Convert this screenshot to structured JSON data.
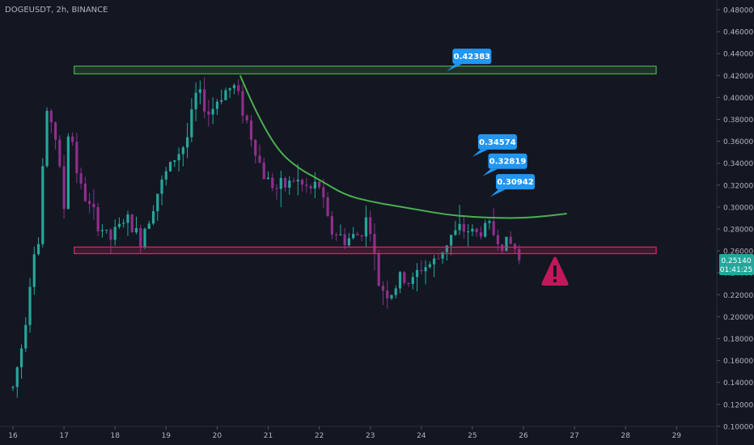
{
  "header": {
    "symbol": "DOGEUSDT, 2h, BINANCE"
  },
  "price_tag": {
    "price": "0.25140",
    "countdown": "01:41:25"
  },
  "colors": {
    "background": "#131722",
    "up": "#26a69a",
    "down": "#8e2f8a",
    "resistance": "#4caf50",
    "support": "#e91e63",
    "callout": "#2196f3",
    "warning": "#c2185b",
    "text": "#b2b5be"
  },
  "icons": {
    "warning": "warning-triangle-icon"
  },
  "chart_data": {
    "type": "candlestick",
    "title": "DOGEUSDT, 2h, BINANCE",
    "xlabel": "",
    "ylabel": "",
    "x_range": [
      16.0,
      29.6
    ],
    "ylim": [
      0.1,
      0.48
    ],
    "x_ticks": [
      16,
      17,
      18,
      19,
      20,
      21,
      22,
      23,
      24,
      25,
      26,
      27,
      28,
      29
    ],
    "x_tick_labels": [
      "16",
      "17",
      "18",
      "19",
      "20",
      "21",
      "22",
      "23",
      "24",
      "25",
      "26",
      "27",
      "28",
      "29"
    ],
    "y_ticks": [
      0.1,
      0.12,
      0.14,
      0.16,
      0.18,
      0.2,
      0.22,
      0.24,
      0.26,
      0.28,
      0.3,
      0.32,
      0.34,
      0.36,
      0.38,
      0.4,
      0.42,
      0.44,
      0.46,
      0.48
    ],
    "y_tick_labels": [
      "0.10000",
      "0.12000",
      "0.14000",
      "0.16000",
      "0.18000",
      "0.20000",
      "0.22000",
      "0.24000",
      "0.26000",
      "0.28000",
      "0.30000",
      "0.32000",
      "0.34000",
      "0.36000",
      "0.38000",
      "0.40000",
      "0.42000",
      "0.44000",
      "0.46000",
      "0.48000"
    ],
    "grid": false,
    "price_anchors": [
      [
        16.0,
        0.135
      ],
      [
        16.2,
        0.18
      ],
      [
        16.4,
        0.26
      ],
      [
        16.55,
        0.27
      ],
      [
        16.6,
        0.37
      ],
      [
        16.7,
        0.39
      ],
      [
        16.85,
        0.36
      ],
      [
        17.0,
        0.3
      ],
      [
        17.1,
        0.38
      ],
      [
        17.3,
        0.32
      ],
      [
        17.6,
        0.29
      ],
      [
        17.9,
        0.27
      ],
      [
        18.2,
        0.29
      ],
      [
        18.5,
        0.27
      ],
      [
        18.8,
        0.31
      ],
      [
        19.1,
        0.34
      ],
      [
        19.4,
        0.36
      ],
      [
        19.6,
        0.405
      ],
      [
        19.85,
        0.385
      ],
      [
        20.1,
        0.405
      ],
      [
        20.35,
        0.41
      ],
      [
        20.5,
        0.39
      ],
      [
        20.7,
        0.36
      ],
      [
        20.9,
        0.33
      ],
      [
        21.2,
        0.315
      ],
      [
        21.5,
        0.325
      ],
      [
        21.8,
        0.315
      ],
      [
        22.0,
        0.32
      ],
      [
        22.2,
        0.28
      ],
      [
        22.5,
        0.27
      ],
      [
        22.8,
        0.275
      ],
      [
        22.9,
        0.29
      ],
      [
        23.0,
        0.28
      ],
      [
        23.15,
        0.23
      ],
      [
        23.4,
        0.22
      ],
      [
        23.6,
        0.235
      ],
      [
        23.8,
        0.23
      ],
      [
        24.0,
        0.245
      ],
      [
        24.3,
        0.25
      ],
      [
        24.45,
        0.265
      ],
      [
        24.6,
        0.275
      ],
      [
        24.9,
        0.28
      ],
      [
        25.1,
        0.275
      ],
      [
        25.3,
        0.285
      ],
      [
        25.5,
        0.27
      ],
      [
        25.8,
        0.265
      ],
      [
        25.95,
        0.2514
      ]
    ],
    "resistance_zone": {
      "price_low": 0.4215,
      "price_high": 0.4285,
      "x_start": 17.2,
      "x_end": 28.6
    },
    "support_zone": {
      "price_low": 0.2575,
      "price_high": 0.2635,
      "x_start": 17.2,
      "x_end": 28.6
    },
    "curve_points": [
      [
        20.45,
        0.42
      ],
      [
        20.8,
        0.383
      ],
      [
        21.2,
        0.351
      ],
      [
        21.6,
        0.335
      ],
      [
        22.0,
        0.325
      ],
      [
        22.5,
        0.311
      ],
      [
        23.0,
        0.305
      ],
      [
        23.5,
        0.301
      ],
      [
        24.0,
        0.297
      ],
      [
        24.5,
        0.293
      ],
      [
        25.0,
        0.291
      ],
      [
        25.5,
        0.29
      ],
      [
        26.0,
        0.29
      ],
      [
        26.5,
        0.292
      ],
      [
        26.85,
        0.294
      ]
    ],
    "callouts": [
      {
        "label": "0.42383",
        "value": 0.42383,
        "x": 24.5
      },
      {
        "label": "0.34574",
        "value": 0.34574,
        "x": 25.0
      },
      {
        "label": "0.32819",
        "value": 0.32819,
        "x": 25.2
      },
      {
        "label": "0.30942",
        "value": 0.30942,
        "x": 25.35
      }
    ],
    "last_price": 0.2514
  }
}
